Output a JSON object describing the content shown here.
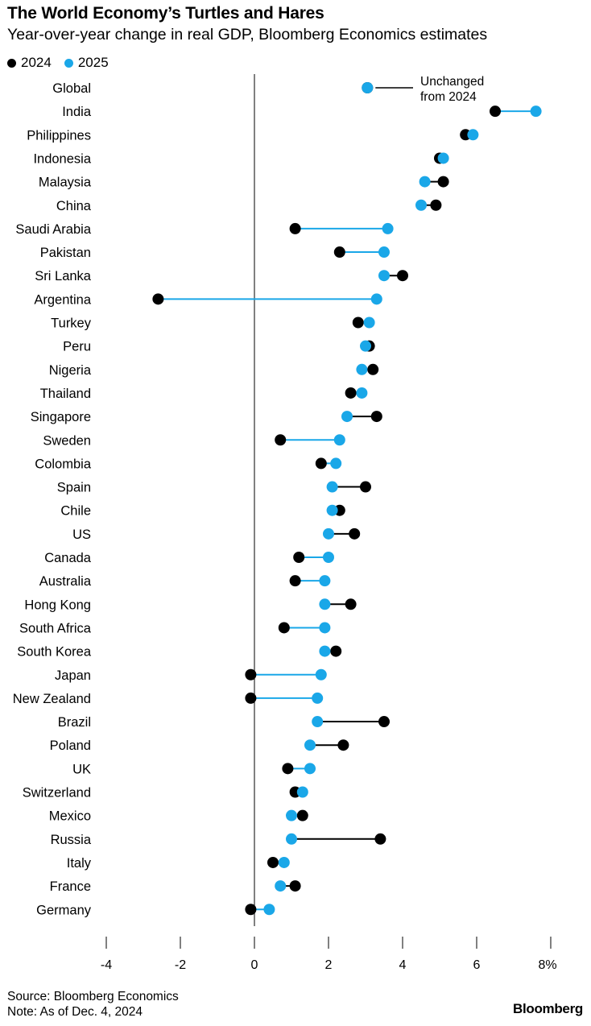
{
  "header": {
    "title": "The World Economy’s Turtles and Hares",
    "subtitle": "Year-over-year change in real GDP, Bloomberg Economics estimates"
  },
  "legend": [
    {
      "label": "2024",
      "color": "#000000"
    },
    {
      "label": "2025",
      "color": "#1aa7e8"
    }
  ],
  "annotation": {
    "line1": "Unchanged",
    "line2": "from 2024"
  },
  "footer": {
    "source": "Source: Bloomberg Economics",
    "note": "Note: As of Dec. 4, 2024",
    "brand": "Bloomberg"
  },
  "chart_data": {
    "type": "dumbbell",
    "title": "The World Economy’s Turtles and Hares",
    "subtitle": "Year-over-year change in real GDP, Bloomberg Economics estimates",
    "xlim": [
      -4,
      8
    ],
    "x_ticks": [
      "-4",
      "-2",
      "0",
      "2",
      "4",
      "6",
      "8%"
    ],
    "x_tick_values": [
      -4,
      -2,
      0,
      2,
      4,
      6,
      8
    ],
    "series": [
      {
        "name": "2024",
        "color": "#000000"
      },
      {
        "name": "2025",
        "color": "#1aa7e8"
      }
    ],
    "legend_position": "top-left",
    "grid": false,
    "points": [
      {
        "label": "Global",
        "v2024": 3.05,
        "v2025": 3.05
      },
      {
        "label": "India",
        "v2024": 6.5,
        "v2025": 7.6
      },
      {
        "label": "Philippines",
        "v2024": 5.7,
        "v2025": 5.9
      },
      {
        "label": "Indonesia",
        "v2024": 5.0,
        "v2025": 5.1
      },
      {
        "label": "Malaysia",
        "v2024": 5.1,
        "v2025": 4.6
      },
      {
        "label": "China",
        "v2024": 4.9,
        "v2025": 4.5
      },
      {
        "label": "Saudi Arabia",
        "v2024": 1.1,
        "v2025": 3.6
      },
      {
        "label": "Pakistan",
        "v2024": 2.3,
        "v2025": 3.5
      },
      {
        "label": "Sri Lanka",
        "v2024": 4.0,
        "v2025": 3.5
      },
      {
        "label": "Argentina",
        "v2024": -2.6,
        "v2025": 3.3
      },
      {
        "label": "Turkey",
        "v2024": 2.8,
        "v2025": 3.1
      },
      {
        "label": "Peru",
        "v2024": 3.1,
        "v2025": 3.0
      },
      {
        "label": "Nigeria",
        "v2024": 3.2,
        "v2025": 2.9
      },
      {
        "label": "Thailand",
        "v2024": 2.6,
        "v2025": 2.9
      },
      {
        "label": "Singapore",
        "v2024": 3.3,
        "v2025": 2.5
      },
      {
        "label": "Sweden",
        "v2024": 0.7,
        "v2025": 2.3
      },
      {
        "label": "Colombia",
        "v2024": 1.8,
        "v2025": 2.2
      },
      {
        "label": "Spain",
        "v2024": 3.0,
        "v2025": 2.1
      },
      {
        "label": "Chile",
        "v2024": 2.3,
        "v2025": 2.1
      },
      {
        "label": "US",
        "v2024": 2.7,
        "v2025": 2.0
      },
      {
        "label": "Canada",
        "v2024": 1.2,
        "v2025": 2.0
      },
      {
        "label": "Australia",
        "v2024": 1.1,
        "v2025": 1.9
      },
      {
        "label": "Hong Kong",
        "v2024": 2.6,
        "v2025": 1.9
      },
      {
        "label": "South Africa",
        "v2024": 0.8,
        "v2025": 1.9
      },
      {
        "label": "South Korea",
        "v2024": 2.2,
        "v2025": 1.9
      },
      {
        "label": "Japan",
        "v2024": -0.1,
        "v2025": 1.8
      },
      {
        "label": "New Zealand",
        "v2024": -0.1,
        "v2025": 1.7
      },
      {
        "label": "Brazil",
        "v2024": 3.5,
        "v2025": 1.7
      },
      {
        "label": "Poland",
        "v2024": 2.4,
        "v2025": 1.5
      },
      {
        "label": "UK",
        "v2024": 0.9,
        "v2025": 1.5
      },
      {
        "label": "Switzerland",
        "v2024": 1.1,
        "v2025": 1.3
      },
      {
        "label": "Mexico",
        "v2024": 1.3,
        "v2025": 1.0
      },
      {
        "label": "Russia",
        "v2024": 3.4,
        "v2025": 1.0
      },
      {
        "label": "Italy",
        "v2024": 0.5,
        "v2025": 0.8
      },
      {
        "label": "France",
        "v2024": 1.1,
        "v2025": 0.7
      },
      {
        "label": "Germany",
        "v2024": -0.1,
        "v2025": 0.4
      }
    ]
  }
}
